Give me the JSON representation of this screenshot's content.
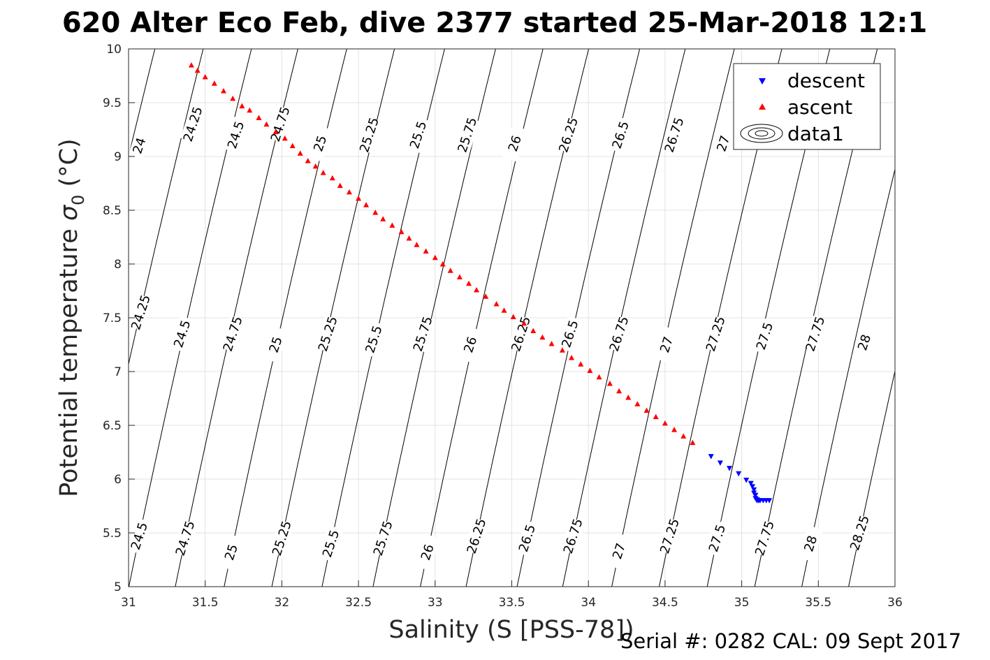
{
  "chart_data": {
    "type": "scatter",
    "title": "620 Alter Eco Feb, dive 2377 started 25-Mar-2018 12:1",
    "xlabel": "Salinity (S [PSS-78])",
    "ylabel_main": "Potential temperature ",
    "ylabel_sigma": "σ",
    "ylabel_sub": "0",
    "ylabel_unit": " (°C)",
    "footer": "Serial #: 0282  CAL: 09 Sept 2017",
    "xlim": [
      31,
      36
    ],
    "ylim": [
      5,
      10
    ],
    "grid": true,
    "legend_position": "top-right",
    "x_ticks": [
      "31",
      "31.5",
      "32",
      "32.5",
      "33",
      "33.5",
      "34",
      "34.5",
      "35",
      "35.5",
      "36"
    ],
    "y_ticks": [
      "5",
      "5.5",
      "6",
      "6.5",
      "7",
      "7.5",
      "8",
      "8.5",
      "9",
      "9.5",
      "10"
    ],
    "contour_labels": [
      {
        "text": "24",
        "x": 31.07,
        "y": 9.1
      },
      {
        "text": "24.25",
        "x": 31.42,
        "y": 9.3
      },
      {
        "text": "24.5",
        "x": 31.7,
        "y": 9.2
      },
      {
        "text": "24.75",
        "x": 31.99,
        "y": 9.3
      },
      {
        "text": "25",
        "x": 32.25,
        "y": 9.12
      },
      {
        "text": "25.25",
        "x": 32.57,
        "y": 9.2
      },
      {
        "text": "25.5",
        "x": 32.89,
        "y": 9.2
      },
      {
        "text": "25.75",
        "x": 33.21,
        "y": 9.2
      },
      {
        "text": "26",
        "x": 33.52,
        "y": 9.12
      },
      {
        "text": "26.25",
        "x": 33.87,
        "y": 9.2
      },
      {
        "text": "26.5",
        "x": 34.21,
        "y": 9.2
      },
      {
        "text": "26.75",
        "x": 34.56,
        "y": 9.2
      },
      {
        "text": "27",
        "x": 34.88,
        "y": 9.12
      },
      {
        "text": "24.25",
        "x": 31.08,
        "y": 7.55
      },
      {
        "text": "24.5",
        "x": 31.35,
        "y": 7.35
      },
      {
        "text": "24.75",
        "x": 31.68,
        "y": 7.35
      },
      {
        "text": "25",
        "x": 31.96,
        "y": 7.25
      },
      {
        "text": "25.25",
        "x": 32.3,
        "y": 7.35
      },
      {
        "text": "25.5",
        "x": 32.6,
        "y": 7.3
      },
      {
        "text": "25.75",
        "x": 32.92,
        "y": 7.35
      },
      {
        "text": "26",
        "x": 33.23,
        "y": 7.25
      },
      {
        "text": "26.25",
        "x": 33.56,
        "y": 7.35
      },
      {
        "text": "26.5",
        "x": 33.88,
        "y": 7.35
      },
      {
        "text": "26.75",
        "x": 34.2,
        "y": 7.35
      },
      {
        "text": "27",
        "x": 34.51,
        "y": 7.25
      },
      {
        "text": "27.25",
        "x": 34.83,
        "y": 7.35
      },
      {
        "text": "27.5",
        "x": 35.15,
        "y": 7.33
      },
      {
        "text": "27.75",
        "x": 35.48,
        "y": 7.35
      },
      {
        "text": "28",
        "x": 35.8,
        "y": 7.27
      },
      {
        "text": "24.5",
        "x": 31.07,
        "y": 5.47
      },
      {
        "text": "24.75",
        "x": 31.37,
        "y": 5.45
      },
      {
        "text": "25",
        "x": 31.67,
        "y": 5.32
      },
      {
        "text": "25.25",
        "x": 32.0,
        "y": 5.45
      },
      {
        "text": "25.5",
        "x": 32.32,
        "y": 5.4
      },
      {
        "text": "25.75",
        "x": 32.66,
        "y": 5.45
      },
      {
        "text": "26",
        "x": 32.95,
        "y": 5.32
      },
      {
        "text": "26.25",
        "x": 33.27,
        "y": 5.47
      },
      {
        "text": "26.5",
        "x": 33.6,
        "y": 5.45
      },
      {
        "text": "26.75",
        "x": 33.9,
        "y": 5.47
      },
      {
        "text": "27",
        "x": 34.2,
        "y": 5.33
      },
      {
        "text": "27.25",
        "x": 34.53,
        "y": 5.47
      },
      {
        "text": "27.5",
        "x": 34.84,
        "y": 5.45
      },
      {
        "text": "27.75",
        "x": 35.15,
        "y": 5.45
      },
      {
        "text": "28",
        "x": 35.45,
        "y": 5.4
      },
      {
        "text": "28.25",
        "x": 35.77,
        "y": 5.5
      }
    ],
    "series": [
      {
        "name": "descent",
        "color": "#0000ff",
        "marker": "triangle-down",
        "x": [
          34.8,
          34.86,
          34.92,
          34.98,
          35.03,
          35.06,
          35.07,
          35.08,
          35.08,
          35.09,
          35.09,
          35.1,
          35.1,
          35.11,
          35.12,
          35.14,
          35.16,
          35.18
        ],
        "y": [
          6.21,
          6.15,
          6.1,
          6.05,
          5.99,
          5.96,
          5.93,
          5.9,
          5.87,
          5.85,
          5.82,
          5.81,
          5.8,
          5.8,
          5.8,
          5.8,
          5.8,
          5.8
        ]
      },
      {
        "name": "ascent",
        "color": "#ff0000",
        "marker": "triangle-up",
        "x": [
          31.41,
          31.45,
          31.5,
          31.56,
          31.62,
          31.68,
          31.74,
          31.79,
          31.85,
          31.9,
          31.96,
          32.02,
          32.07,
          32.12,
          32.17,
          32.22,
          32.27,
          32.33,
          32.38,
          32.44,
          32.5,
          32.55,
          32.61,
          32.66,
          32.72,
          32.78,
          32.83,
          32.88,
          32.94,
          33.0,
          33.05,
          33.1,
          33.16,
          33.22,
          33.27,
          33.33,
          33.4,
          33.45,
          33.51,
          33.58,
          33.64,
          33.7,
          33.76,
          33.83,
          33.89,
          33.95,
          34.01,
          34.07,
          34.14,
          34.2,
          34.26,
          34.32,
          34.38,
          34.44,
          34.5,
          34.56,
          34.62,
          34.68
        ],
        "y": [
          9.85,
          9.8,
          9.74,
          9.68,
          9.61,
          9.54,
          9.47,
          9.43,
          9.36,
          9.3,
          9.23,
          9.17,
          9.1,
          9.03,
          8.96,
          8.91,
          8.85,
          8.8,
          8.73,
          8.67,
          8.61,
          8.55,
          8.48,
          8.42,
          8.36,
          8.3,
          8.24,
          8.18,
          8.12,
          8.06,
          8.0,
          7.94,
          7.88,
          7.82,
          7.76,
          7.7,
          7.63,
          7.57,
          7.51,
          7.45,
          7.38,
          7.32,
          7.26,
          7.2,
          7.13,
          7.07,
          7.01,
          6.95,
          6.89,
          6.82,
          6.76,
          6.7,
          6.64,
          6.58,
          6.52,
          6.46,
          6.4,
          6.34
        ]
      }
    ],
    "contour_series_name": "data1"
  }
}
